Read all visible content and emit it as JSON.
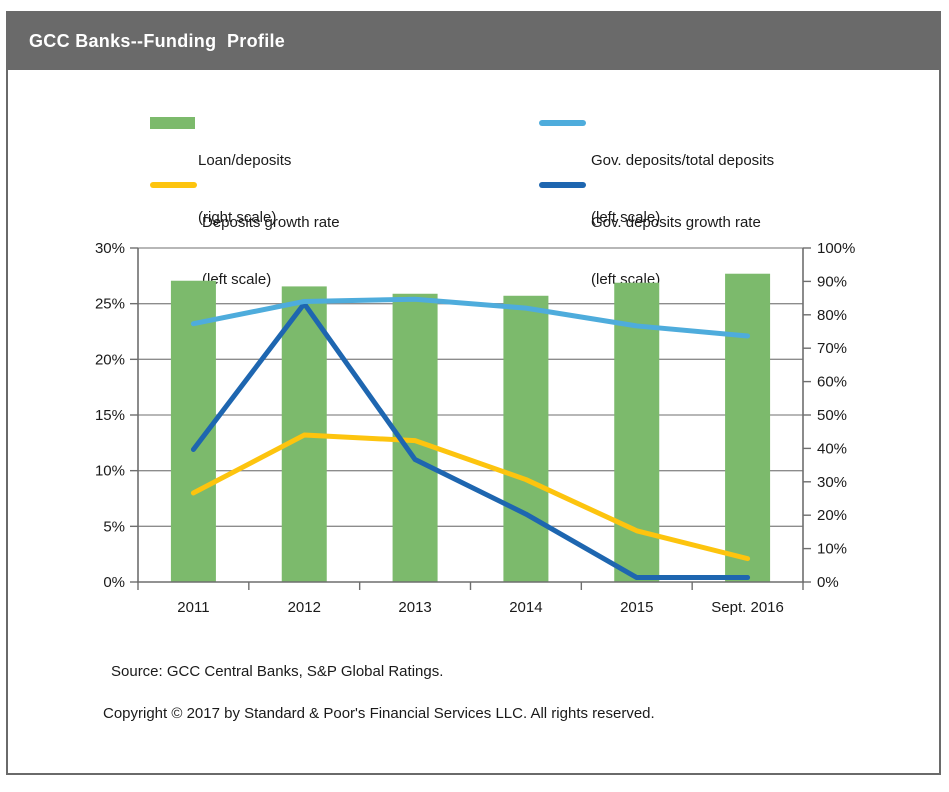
{
  "window": {
    "title": "GCC Banks--Funding  Profile"
  },
  "colors": {
    "title_bar": "#6a6a6a",
    "card_border": "#6a6a6a",
    "grid": "#8c8c8c",
    "axis": "#6e6e6e",
    "bar_green": "#7cba6c",
    "line_light_blue": "#4eacdc",
    "line_yellow": "#fdc40e",
    "line_dark_blue": "#1e66b0"
  },
  "legend": [
    {
      "label": "Loan/deposits",
      "scale": "(right scale)",
      "swatch": "bar",
      "color": "#7cba6c"
    },
    {
      "label": "Gov. deposits/total deposits",
      "scale": "(left scale)",
      "swatch": "line",
      "color": "#4eacdc"
    },
    {
      "label": "Deposits growth rate",
      "scale": "(left scale)",
      "swatch": "line",
      "color": "#fdc40e"
    },
    {
      "label": "Gov. deposits growth rate",
      "scale": "(left scale)",
      "swatch": "line",
      "color": "#1e66b0"
    }
  ],
  "chart_data": {
    "type": "combo-bar-line",
    "title": "GCC Banks--Funding Profile",
    "categories": [
      "2011",
      "2012",
      "2013",
      "2014",
      "2015",
      "Sept. 2016"
    ],
    "series": [
      {
        "name": "Loan/deposits",
        "type": "bar",
        "axis": "right",
        "color": "#7cba6c",
        "values": [
          90.2,
          88.5,
          86.3,
          85.7,
          89.6,
          92.3
        ]
      },
      {
        "name": "Gov. deposits/total deposits",
        "type": "line",
        "axis": "left",
        "color": "#4eacdc",
        "values": [
          23.2,
          25.2,
          25.4,
          24.6,
          23.0,
          22.1
        ]
      },
      {
        "name": "Deposits growth rate",
        "type": "line",
        "axis": "left",
        "color": "#fdc40e",
        "values": [
          8.0,
          13.2,
          12.7,
          9.2,
          4.6,
          2.1
        ]
      },
      {
        "name": "Gov. deposits growth rate",
        "type": "line",
        "axis": "left",
        "color": "#1e66b0",
        "values": [
          11.9,
          25.0,
          11.0,
          6.1,
          0.4,
          0.4
        ]
      }
    ],
    "left_axis": {
      "min": 0,
      "max": 30,
      "step": 5,
      "ticks": [
        "0%",
        "5%",
        "10%",
        "15%",
        "20%",
        "25%",
        "30%"
      ]
    },
    "right_axis": {
      "min": 0,
      "max": 100,
      "step": 10,
      "ticks": [
        "0%",
        "10%",
        "20%",
        "30%",
        "40%",
        "50%",
        "60%",
        "70%",
        "80%",
        "90%",
        "100%"
      ]
    },
    "grid": true,
    "legend_position": "top"
  },
  "footer": {
    "source": "Source: GCC Central Banks, S&P Global Ratings.",
    "copyright": "Copyright © 2017 by Standard & Poor's Financial Services LLC. All rights reserved."
  }
}
